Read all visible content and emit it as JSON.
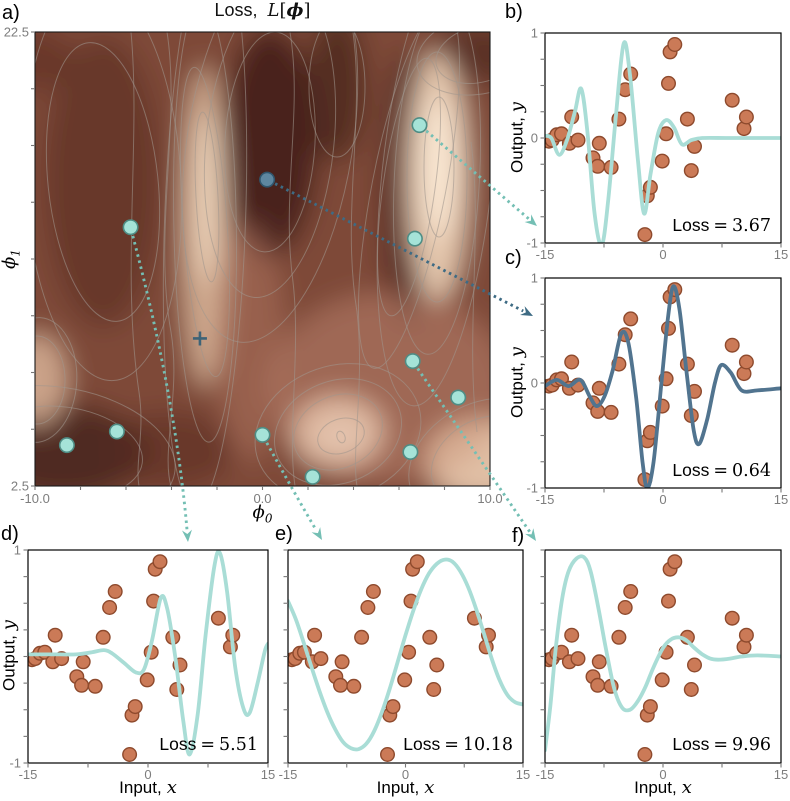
{
  "colors": {
    "curve_light": "#a9ddd6",
    "curve_dark": "#51748f",
    "scatter_fill": "#cb7a57",
    "scatter_edge": "#8e4a2d",
    "sample_dot_fill": "#a5e3d8",
    "sample_dot_edge": "#4f8d85",
    "dark_dot_fill": "#5e87a0",
    "dark_dot_edge": "#30566d",
    "arrow_light": "#74bfb4",
    "arrow_dark": "#3e6b84",
    "plus_marker": "#3d6377",
    "heatmap_dark": "#45221a",
    "heatmap_mid": "#7e4837",
    "heatmap_light": "#fdf2e0",
    "contour_line": "#a0968e",
    "tick_label": "#7d7d7d",
    "tick_mark": "#777777",
    "axis_frame": "#000000"
  },
  "training_data": {
    "marker": "circle",
    "points": [
      [
        -14.5,
        -0.03
      ],
      [
        -14.1,
        -0.02
      ],
      [
        -13.5,
        0.03
      ],
      [
        -12.9,
        0.04
      ],
      [
        -11.9,
        -0.05
      ],
      [
        -11.6,
        0.2
      ],
      [
        -10.8,
        -0.02
      ],
      [
        -8.9,
        -0.19
      ],
      [
        -8.3,
        -0.27
      ],
      [
        -8.1,
        -0.05
      ],
      [
        -6.6,
        -0.28
      ],
      [
        -5.6,
        0.18
      ],
      [
        -4.8,
        0.46
      ],
      [
        -4.1,
        0.61
      ],
      [
        -2.3,
        -0.92
      ],
      [
        -2.0,
        -0.55
      ],
      [
        -1.6,
        -0.47
      ],
      [
        -0.1,
        -0.22
      ],
      [
        0.4,
        0.04
      ],
      [
        0.7,
        0.52
      ],
      [
        0.9,
        0.82
      ],
      [
        1.5,
        0.89
      ],
      [
        3.1,
        0.18
      ],
      [
        3.6,
        -0.31
      ],
      [
        4.0,
        -0.08
      ],
      [
        8.8,
        0.36
      ],
      [
        10.3,
        0.09
      ],
      [
        10.6,
        0.2
      ]
    ]
  },
  "chart_data": [
    {
      "id": "a",
      "panel_label": "a)",
      "type": "heatmap",
      "title_parts": {
        "prefix": "Loss,",
        "L": "L",
        "open": "[",
        "phi": "ϕ",
        "close": "]"
      },
      "xlabel_parts": {
        "var": "ϕ",
        "sub": "0"
      },
      "ylabel_parts": {
        "var": "ϕ",
        "sub": "1"
      },
      "xlim": [
        -10.0,
        10.0
      ],
      "ylim": [
        2.5,
        22.5
      ],
      "xtick_labeled": [
        [
          "-10.0",
          -10.0
        ],
        [
          "0.0",
          0.0
        ],
        [
          "10.0",
          10.0
        ]
      ],
      "ytick_labeled": [
        [
          "22.5",
          22.5
        ],
        [
          "2.5",
          2.5
        ]
      ],
      "colormap": "dark maroon to cream loss surface with gray contour lines",
      "init_marker": {
        "phi0": -2.75,
        "phi1": 9.0,
        "symbol": "+"
      },
      "samples": [
        {
          "phi0": 6.9,
          "phi1": 18.4,
          "style": "light",
          "links_to": "b"
        },
        {
          "phi0": 0.2,
          "phi1": 16.0,
          "style": "dark",
          "links_to": "c"
        },
        {
          "phi0": -5.8,
          "phi1": 13.9,
          "style": "light",
          "links_to": "d"
        },
        {
          "phi0": 0.0,
          "phi1": 4.75,
          "style": "light",
          "links_to": "e"
        },
        {
          "phi0": 6.6,
          "phi1": 8.0,
          "style": "light",
          "links_to": "f"
        },
        {
          "phi0": 6.7,
          "phi1": 13.4,
          "style": "light",
          "links_to": null
        },
        {
          "phi0": 8.6,
          "phi1": 6.4,
          "style": "light",
          "links_to": null
        },
        {
          "phi0": 6.5,
          "phi1": 4.0,
          "style": "light",
          "links_to": null
        },
        {
          "phi0": 2.2,
          "phi1": 2.9,
          "style": "light",
          "links_to": null
        },
        {
          "phi0": -8.6,
          "phi1": 4.3,
          "style": "light",
          "links_to": null
        },
        {
          "phi0": -6.4,
          "phi1": 4.9,
          "style": "light",
          "links_to": null
        }
      ]
    },
    {
      "id": "b",
      "panel_label": "b)",
      "type": "line+scatter",
      "loss": {
        "prefix": "Loss",
        "eq": "=",
        "value": "3.67"
      },
      "xlim": [
        -15,
        15
      ],
      "ylim": [
        -1,
        1
      ],
      "xtick_labeled": [
        [
          "-15",
          -15
        ],
        [
          "0",
          0
        ],
        [
          "15",
          15
        ]
      ],
      "ytick_labeled": [
        [
          "1",
          1
        ],
        [
          "0",
          0
        ],
        [
          "-1",
          -1
        ]
      ],
      "ylabel_parts": {
        "prefix": "Output,",
        "var": "y"
      },
      "curve_color": "light",
      "curve": [
        [
          -15,
          0.02
        ],
        [
          -14.2,
          0.0
        ],
        [
          -13.2,
          -0.16
        ],
        [
          -12.2,
          -0.02
        ],
        [
          -11.2,
          0.25
        ],
        [
          -10.4,
          0.47
        ],
        [
          -9.6,
          0.05
        ],
        [
          -8.7,
          -0.72
        ],
        [
          -7.8,
          -1.02
        ],
        [
          -7.0,
          -0.62
        ],
        [
          -6.0,
          0.2
        ],
        [
          -5.0,
          0.9
        ],
        [
          -4.2,
          0.6
        ],
        [
          -3.2,
          -0.2
        ],
        [
          -2.4,
          -0.72
        ],
        [
          -1.6,
          -0.35
        ],
        [
          -0.6,
          0.05
        ],
        [
          0.4,
          0.17
        ],
        [
          1.4,
          0.1
        ],
        [
          2.4,
          -0.06
        ],
        [
          3.6,
          -0.02
        ],
        [
          5,
          0.0
        ],
        [
          8,
          0.0
        ],
        [
          11,
          0.0
        ],
        [
          15,
          0.0
        ]
      ]
    },
    {
      "id": "c",
      "panel_label": "c)",
      "type": "line+scatter",
      "loss": {
        "prefix": "Loss",
        "eq": "=",
        "value": "0.64"
      },
      "xlim": [
        -15,
        15
      ],
      "ylim": [
        -1,
        1
      ],
      "xtick_labeled": [
        [
          "-15",
          -15
        ],
        [
          "0",
          0
        ],
        [
          "15",
          15
        ]
      ],
      "ytick_labeled": [
        [
          "1",
          1
        ],
        [
          "0",
          0
        ],
        [
          "-1",
          -1
        ]
      ],
      "ylabel_parts": {
        "prefix": "Output,",
        "var": "y"
      },
      "curve_color": "dark",
      "curve": [
        [
          -15,
          -0.03
        ],
        [
          -13.5,
          0.03
        ],
        [
          -12,
          -0.03
        ],
        [
          -10.5,
          0.03
        ],
        [
          -9.3,
          -0.13
        ],
        [
          -8.4,
          -0.22
        ],
        [
          -7.4,
          -0.12
        ],
        [
          -6.4,
          0.12
        ],
        [
          -5.3,
          0.47
        ],
        [
          -4.4,
          0.38
        ],
        [
          -3.4,
          -0.15
        ],
        [
          -2.6,
          -0.75
        ],
        [
          -2.0,
          -1.0
        ],
        [
          -1.2,
          -0.75
        ],
        [
          -0.2,
          0.0
        ],
        [
          0.6,
          0.6
        ],
        [
          1.3,
          0.92
        ],
        [
          2.1,
          0.7
        ],
        [
          3.0,
          0.1
        ],
        [
          3.9,
          -0.45
        ],
        [
          4.6,
          -0.58
        ],
        [
          5.6,
          -0.35
        ],
        [
          6.6,
          0.0
        ],
        [
          7.4,
          0.17
        ],
        [
          8.6,
          0.1
        ],
        [
          10,
          -0.07
        ],
        [
          12,
          -0.07
        ],
        [
          15,
          -0.05
        ]
      ]
    },
    {
      "id": "d",
      "panel_label": "d)",
      "type": "line+scatter",
      "loss": {
        "prefix": "Loss",
        "eq": "=",
        "value": "5.51"
      },
      "xlim": [
        -15,
        15
      ],
      "ylim": [
        -1,
        1
      ],
      "xtick_labeled": [
        [
          "-15",
          -15
        ],
        [
          "0",
          0
        ],
        [
          "15",
          15
        ]
      ],
      "ytick_labeled": [
        [
          "1",
          1
        ],
        [
          "-1",
          -1
        ]
      ],
      "ylabel_parts": {
        "prefix": "Output,",
        "var": "y"
      },
      "xlabel_parts": {
        "prefix": "Input,",
        "var": "x"
      },
      "curve_color": "light",
      "curve": [
        [
          -15,
          0.02
        ],
        [
          -13,
          0.02
        ],
        [
          -11,
          0.02
        ],
        [
          -9,
          0.02
        ],
        [
          -7,
          0.04
        ],
        [
          -5.5,
          0.06
        ],
        [
          -4.5,
          0.03
        ],
        [
          -3,
          -0.06
        ],
        [
          -1.5,
          -0.15
        ],
        [
          -0.5,
          -0.12
        ],
        [
          0.5,
          0.15
        ],
        [
          1.6,
          0.55
        ],
        [
          2.4,
          0.45
        ],
        [
          3.4,
          0.0
        ],
        [
          4.4,
          -0.6
        ],
        [
          5.2,
          -0.92
        ],
        [
          6.2,
          -0.55
        ],
        [
          7.2,
          0.2
        ],
        [
          8.3,
          0.85
        ],
        [
          9.0,
          0.97
        ],
        [
          9.9,
          0.6
        ],
        [
          10.9,
          -0.1
        ],
        [
          11.9,
          -0.48
        ],
        [
          12.7,
          -0.53
        ],
        [
          13.7,
          -0.25
        ],
        [
          14.6,
          0.05
        ],
        [
          15,
          0.12
        ]
      ]
    },
    {
      "id": "e",
      "panel_label": "e)",
      "type": "line+scatter",
      "loss": {
        "prefix": "Loss",
        "eq": "=",
        "value": "10.18"
      },
      "xlim": [
        -15,
        15
      ],
      "ylim": [
        -1,
        1
      ],
      "xtick_labeled": [
        [
          "-15",
          -15
        ],
        [
          "0",
          0
        ],
        [
          "15",
          15
        ]
      ],
      "ytick_labeled": [],
      "xlabel_parts": {
        "prefix": "Input,",
        "var": "x"
      },
      "curve_color": "light",
      "curve": [
        [
          -15,
          0.52
        ],
        [
          -14,
          0.35
        ],
        [
          -13,
          0.13
        ],
        [
          -12,
          -0.1
        ],
        [
          -11,
          -0.32
        ],
        [
          -10,
          -0.52
        ],
        [
          -9,
          -0.68
        ],
        [
          -8,
          -0.8
        ],
        [
          -7,
          -0.86
        ],
        [
          -6,
          -0.87
        ],
        [
          -5,
          -0.82
        ],
        [
          -4,
          -0.7
        ],
        [
          -3,
          -0.52
        ],
        [
          -2,
          -0.3
        ],
        [
          -1,
          -0.05
        ],
        [
          0,
          0.2
        ],
        [
          1,
          0.43
        ],
        [
          2,
          0.63
        ],
        [
          3,
          0.78
        ],
        [
          4,
          0.87
        ],
        [
          5,
          0.91
        ],
        [
          6,
          0.89
        ],
        [
          7,
          0.8
        ],
        [
          8,
          0.65
        ],
        [
          9,
          0.45
        ],
        [
          10,
          0.22
        ],
        [
          11,
          -0.02
        ],
        [
          12,
          -0.22
        ],
        [
          13,
          -0.36
        ],
        [
          14,
          -0.43
        ],
        [
          15,
          -0.45
        ]
      ]
    },
    {
      "id": "f",
      "panel_label": "f)",
      "type": "line+scatter",
      "loss": {
        "prefix": "Loss",
        "eq": "=",
        "value": "9.96"
      },
      "xlim": [
        -15,
        15
      ],
      "ylim": [
        -1,
        1
      ],
      "xtick_labeled": [
        [
          "-15",
          -15
        ],
        [
          "0",
          0
        ],
        [
          "15",
          15
        ]
      ],
      "ytick_labeled": [],
      "xlabel_parts": {
        "prefix": "Input,",
        "var": "x"
      },
      "curve_color": "light",
      "curve": [
        [
          -15,
          -0.88
        ],
        [
          -14.3,
          -0.45
        ],
        [
          -13.6,
          0.1
        ],
        [
          -12.8,
          0.55
        ],
        [
          -12,
          0.8
        ],
        [
          -11,
          0.92
        ],
        [
          -10,
          0.93
        ],
        [
          -9.2,
          0.8
        ],
        [
          -8.2,
          0.45
        ],
        [
          -7.2,
          0.05
        ],
        [
          -6.2,
          -0.3
        ],
        [
          -5.2,
          -0.48
        ],
        [
          -4.2,
          -0.5
        ],
        [
          -3.2,
          -0.42
        ],
        [
          -2.2,
          -0.28
        ],
        [
          -1.2,
          -0.1
        ],
        [
          0,
          0.08
        ],
        [
          1,
          0.16
        ],
        [
          2,
          0.18
        ],
        [
          3,
          0.15
        ],
        [
          4,
          0.08
        ],
        [
          5,
          0.02
        ],
        [
          6,
          -0.02
        ],
        [
          7,
          -0.03
        ],
        [
          8.5,
          -0.02
        ],
        [
          10,
          0.0
        ],
        [
          12,
          0.01
        ],
        [
          15,
          0.0
        ]
      ]
    }
  ]
}
